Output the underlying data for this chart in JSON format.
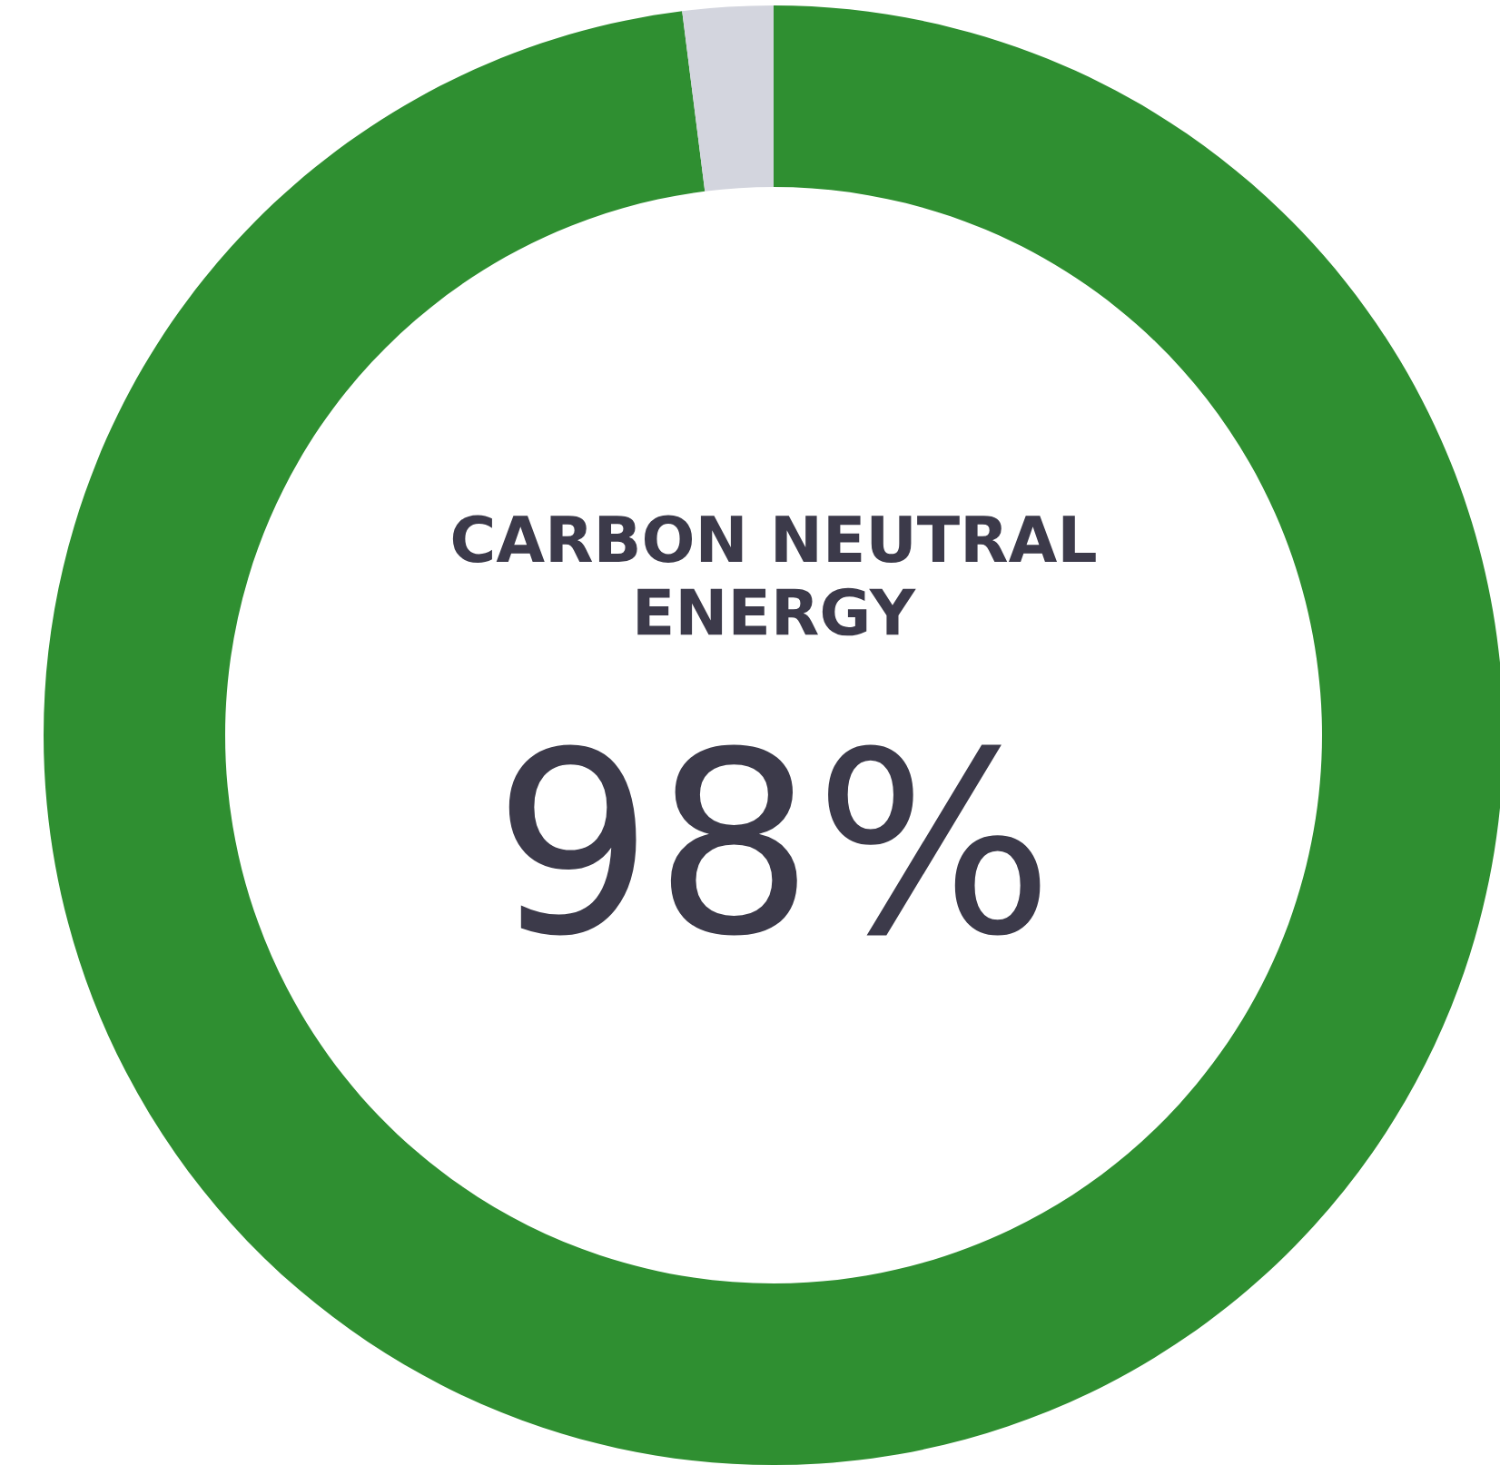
{
  "chart_data": {
    "type": "donut",
    "title": "CARBON NEUTRAL\nENERGY",
    "categories": [
      null,
      null
    ],
    "values": [
      98,
      2
    ],
    "colors": [
      "#2f8f31",
      "#d3d5de"
    ],
    "annotations": [
      "98%"
    ],
    "legend": false
  }
}
